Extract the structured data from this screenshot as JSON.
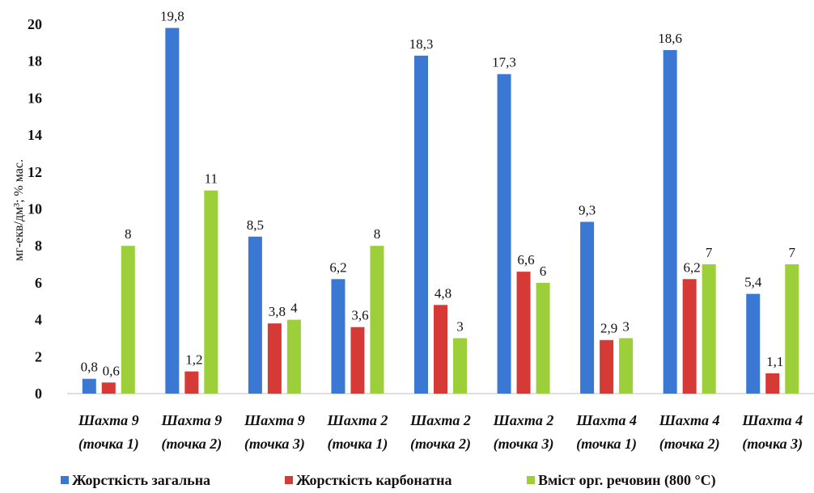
{
  "chart_data": {
    "type": "bar",
    "categories": [
      [
        "Шахта 9",
        "(точка 1)"
      ],
      [
        "Шахта 9",
        "(точка 2)"
      ],
      [
        "Шахта 9",
        "(точка 3)"
      ],
      [
        "Шахта 2",
        "(точка 1)"
      ],
      [
        "Шахта 2",
        "(точка 2)"
      ],
      [
        "Шахта 2",
        "(точка 3)"
      ],
      [
        "Шахта 4",
        "(точка 1)"
      ],
      [
        "Шахта 4",
        "(точка 2)"
      ],
      [
        "Шахта 4",
        "(точка 3)"
      ]
    ],
    "series": [
      {
        "name": "Жорсткість загальна",
        "color": "#3a78d4",
        "values": [
          0.8,
          19.8,
          8.5,
          6.2,
          18.3,
          17.3,
          9.3,
          18.6,
          5.4
        ],
        "labels": [
          "0,8",
          "19,8",
          "8,5",
          "6,2",
          "18,3",
          "17,3",
          "9,3",
          "18,6",
          "5,4"
        ]
      },
      {
        "name": "Жорсткість карбонатна",
        "color": "#d63a36",
        "values": [
          0.6,
          1.2,
          3.8,
          3.6,
          4.8,
          6.6,
          2.9,
          6.2,
          1.1
        ],
        "labels": [
          "0,6",
          "1,2",
          "3,8",
          "3,6",
          "4,8",
          "6,6",
          "2,9",
          "6,2",
          "1,1"
        ]
      },
      {
        "name": "Вміст орг. речовин (800 °С)",
        "color": "#9ccf3a",
        "values": [
          8,
          11,
          4,
          8,
          3,
          6,
          3,
          7,
          7
        ],
        "labels": [
          "8",
          "11",
          "4",
          "8",
          "3",
          "6",
          "3",
          "7",
          "7"
        ]
      }
    ],
    "ylabel": "мг-екв/дм³; % мас.",
    "ylim": [
      0,
      20
    ],
    "yticks": [
      "0",
      "2",
      "4",
      "6",
      "8",
      "10",
      "12",
      "14",
      "16",
      "18",
      "20"
    ],
    "grid": false,
    "legend": "bottom"
  }
}
